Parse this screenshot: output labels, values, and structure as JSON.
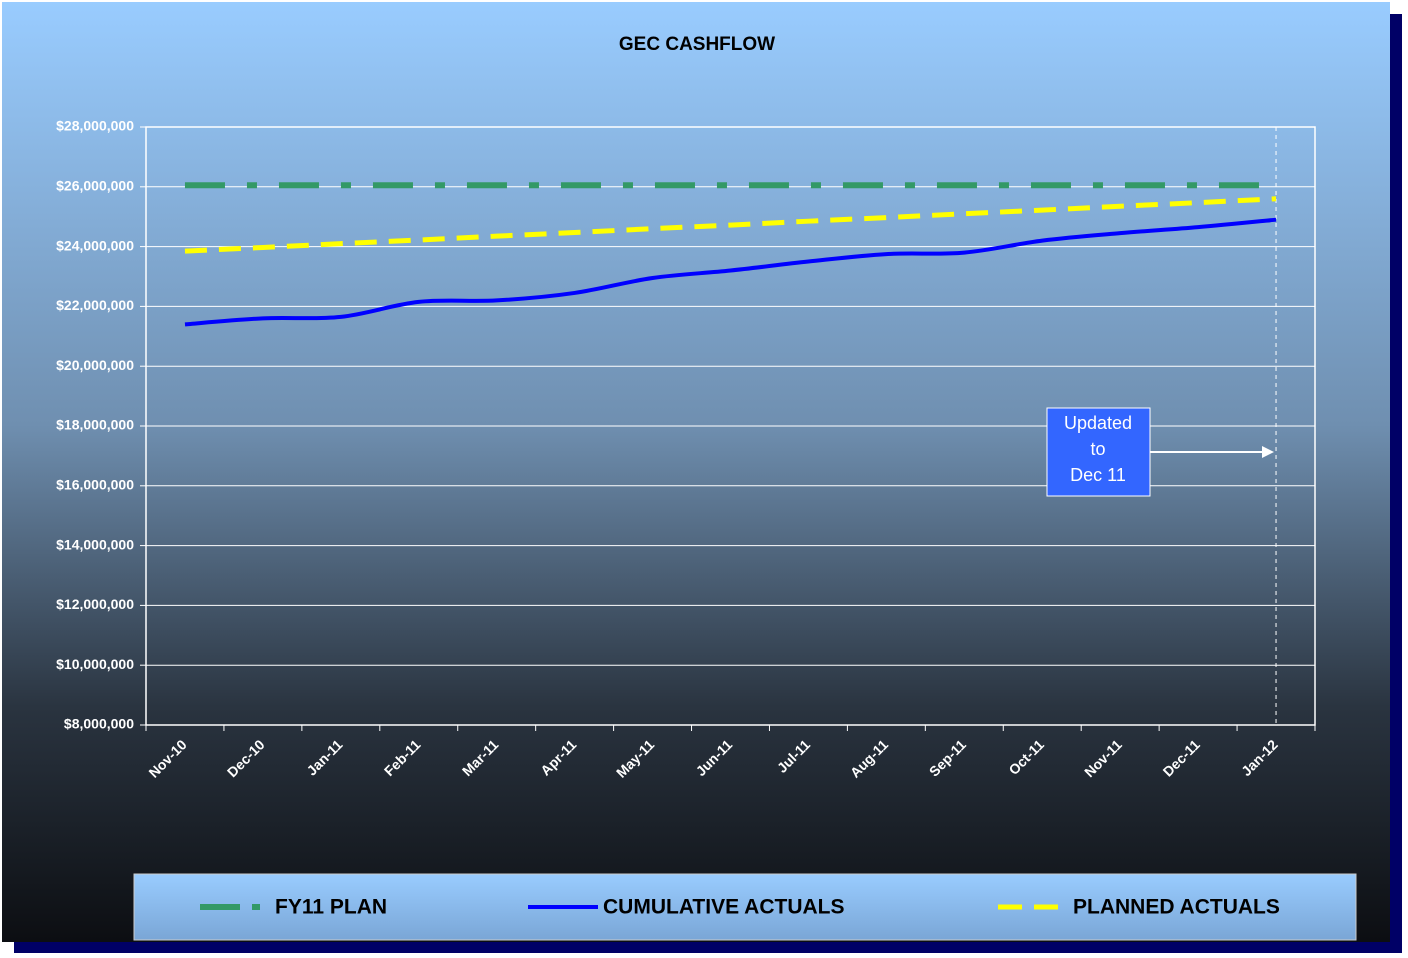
{
  "chart_data": {
    "type": "line",
    "title": "GEC CASHFLOW",
    "categories": [
      "Nov-10",
      "Dec-10",
      "Jan-11",
      "Feb-11",
      "Mar-11",
      "Apr-11",
      "May-11",
      "Jun-11",
      "Jul-11",
      "Aug-11",
      "Sep-11",
      "Oct-11",
      "Nov-11",
      "Dec-11",
      "Jan-12"
    ],
    "series": [
      {
        "name": "FY11 PLAN",
        "color": "#339966",
        "style": "dashdot",
        "values": [
          26050000,
          26050000,
          26050000,
          26050000,
          26050000,
          26050000,
          26050000,
          26050000,
          26050000,
          26050000,
          26050000,
          26050000,
          26050000,
          26050000,
          26050000
        ]
      },
      {
        "name": "CUMULATIVE ACTUALS",
        "color": "#0000ff",
        "style": "solid",
        "values": [
          21400000,
          21600000,
          21650000,
          22150000,
          22200000,
          22450000,
          22950000,
          23200000,
          23500000,
          23750000,
          23800000,
          24200000,
          24450000,
          24650000,
          24900000
        ]
      },
      {
        "name": "PLANNED ACTUALS",
        "color": "#ffff00",
        "style": "dashed",
        "values": [
          23850000,
          23970000,
          24100000,
          24220000,
          24350000,
          24470000,
          24600000,
          24720000,
          24850000,
          24970000,
          25100000,
          25220000,
          25350000,
          25470000,
          25600000
        ]
      }
    ],
    "ylim": [
      8000000,
      28000000
    ],
    "yticks": [
      {
        "value": 8000000,
        "label": "$8,000,000"
      },
      {
        "value": 10000000,
        "label": "$10,000,000"
      },
      {
        "value": 12000000,
        "label": "$12,000,000"
      },
      {
        "value": 14000000,
        "label": "$14,000,000"
      },
      {
        "value": 16000000,
        "label": "$16,000,000"
      },
      {
        "value": 18000000,
        "label": "$18,000,000"
      },
      {
        "value": 20000000,
        "label": "$20,000,000"
      },
      {
        "value": 22000000,
        "label": "$22,000,000"
      },
      {
        "value": 24000000,
        "label": "$24,000,000"
      },
      {
        "value": 26000000,
        "label": "$26,000,000"
      },
      {
        "value": 28000000,
        "label": "$28,000,000"
      }
    ],
    "grid": true,
    "legend": "bottom",
    "annotation": [
      "Updated",
      "to",
      "Dec 11"
    ]
  }
}
